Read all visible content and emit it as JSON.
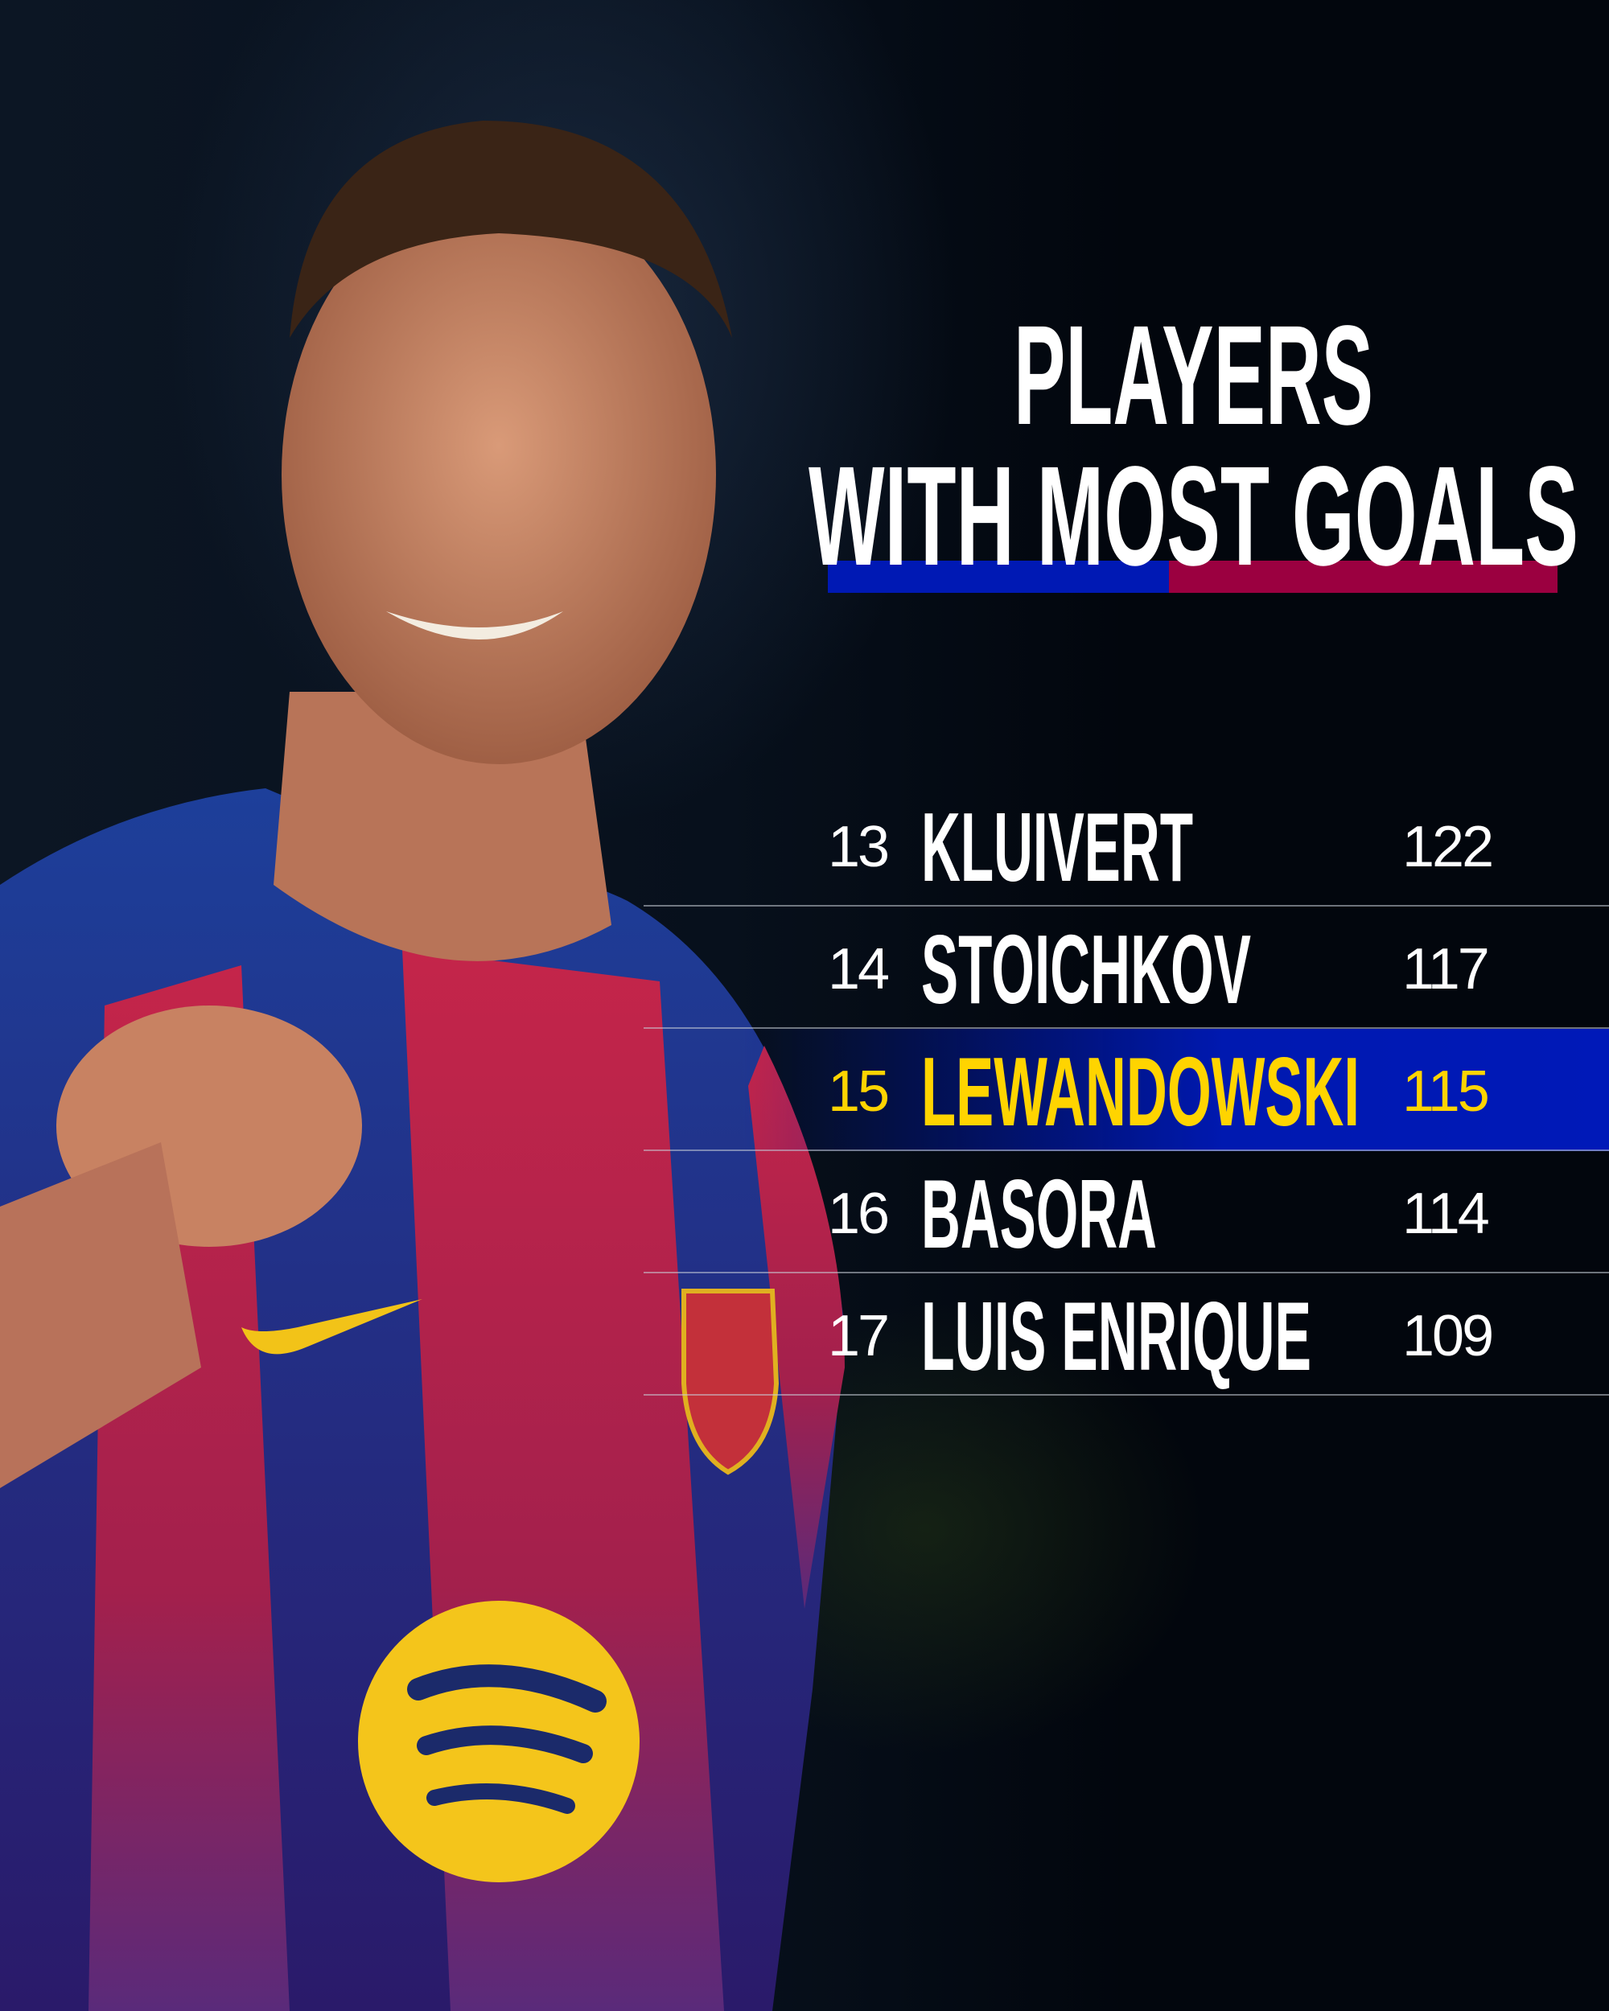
{
  "title": {
    "line1": "PLAYERS",
    "line2": "WITH MOST GOALS"
  },
  "colors": {
    "blue": "#0019b4",
    "garnet": "#9b0040",
    "highlight_text": "#ffd400",
    "background": "#02060d"
  },
  "rows": [
    {
      "rank": "13",
      "name": "KLUIVERT",
      "goals": "122",
      "highlighted": false
    },
    {
      "rank": "14",
      "name": "STOICHKOV",
      "goals": "117",
      "highlighted": false
    },
    {
      "rank": "15",
      "name": "LEWANDOWSKI",
      "goals": "115",
      "highlighted": true
    },
    {
      "rank": "16",
      "name": "BASORA",
      "goals": "114",
      "highlighted": false
    },
    {
      "rank": "17",
      "name": "LUIS ENRIQUE",
      "goals": "109",
      "highlighted": false
    }
  ],
  "photo": {
    "logos": [
      "FCB",
      "nike-swoosh",
      "spotify"
    ]
  }
}
